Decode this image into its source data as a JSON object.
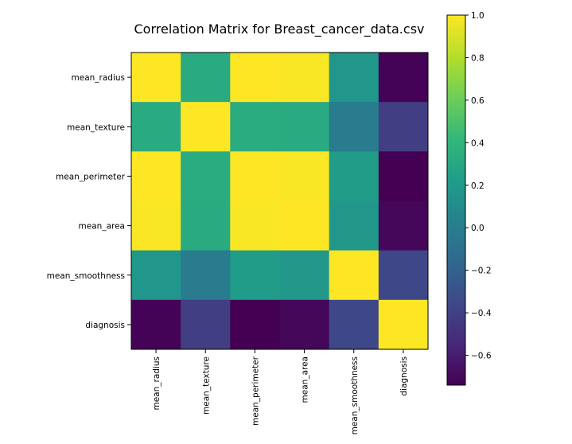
{
  "chart_data": {
    "type": "heatmap",
    "title": "Correlation Matrix for Breast_cancer_data.csv",
    "row_labels": [
      "mean_radius",
      "mean_texture",
      "mean_perimeter",
      "mean_area",
      "mean_smoothness",
      "diagnosis"
    ],
    "col_labels": [
      "mean_radius",
      "mean_texture",
      "mean_perimeter",
      "mean_area",
      "mean_smoothness",
      "diagnosis"
    ],
    "values": [
      [
        1.0,
        0.32,
        1.0,
        0.99,
        0.17,
        -0.73
      ],
      [
        0.32,
        1.0,
        0.33,
        0.32,
        -0.02,
        -0.42
      ],
      [
        1.0,
        0.33,
        1.0,
        0.99,
        0.21,
        -0.74
      ],
      [
        0.99,
        0.32,
        0.99,
        1.0,
        0.18,
        -0.71
      ],
      [
        0.17,
        -0.02,
        0.21,
        0.18,
        1.0,
        -0.36
      ],
      [
        -0.73,
        -0.42,
        -0.74,
        -0.71,
        -0.36,
        1.0
      ]
    ],
    "colormap": "viridis",
    "vmin": -0.74,
    "vmax": 1.0,
    "colorbar_ticks": [
      "1.0",
      "0.8",
      "0.6",
      "0.4",
      "0.2",
      "0.0",
      "−0.2",
      "−0.4",
      "−0.6"
    ],
    "colorbar_tick_values": [
      1.0,
      0.8,
      0.6,
      0.4,
      0.2,
      0.0,
      -0.2,
      -0.4,
      -0.6
    ],
    "grid": false
  }
}
